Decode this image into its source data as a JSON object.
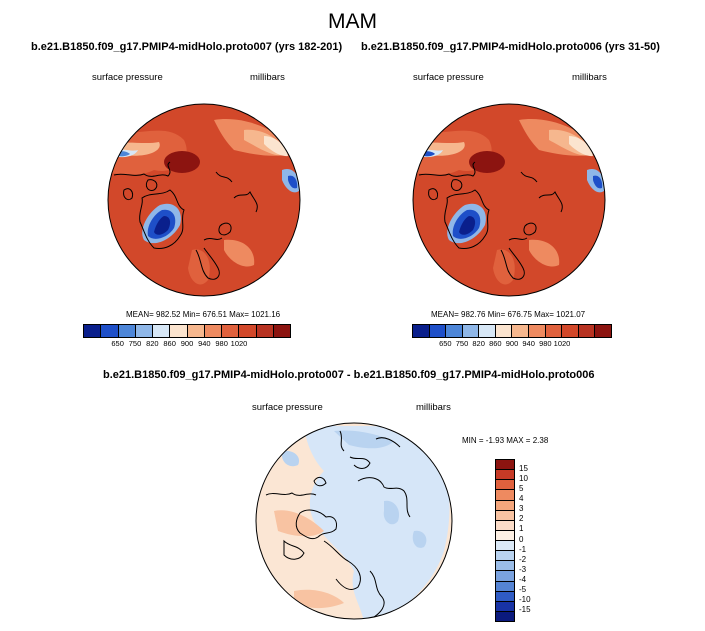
{
  "title": "MAM",
  "panels": [
    {
      "run_title": "b.e21.B1850.f09_g17.PMIP4-midHolo.proto007 (yrs 182-201)",
      "variable": "surface pressure",
      "units": "millibars",
      "stats": "MEAN= 982.52  Min= 676.51  Max= 1021.16"
    },
    {
      "run_title": "b.e21.B1850.f09_g17.PMIP4-midHolo.proto006 (yrs 31-50)",
      "variable": "surface pressure",
      "units": "millibars",
      "stats": "MEAN= 982.76  Min= 676.75  Max= 1021.07"
    }
  ],
  "abs_colorbar": {
    "labels": [
      "650",
      "750",
      "820",
      "860",
      "900",
      "940",
      "980",
      "1020"
    ],
    "colors": [
      "#0a1f8c",
      "#1e4fc8",
      "#4d86d8",
      "#8fb7e8",
      "#d7e7f6",
      "#fbe4cf",
      "#f6b78e",
      "#ee8a60",
      "#e0613d",
      "#d2482a",
      "#b83322",
      "#8c1410"
    ]
  },
  "diff_panel": {
    "title": "b.e21.B1850.f09_g17.PMIP4-midHolo.proto007 - b.e21.B1850.f09_g17.PMIP4-midHolo.proto006",
    "variable": "surface pressure",
    "units": "millibars",
    "minmax": "MIN =  -1.93 MAX =   2.38"
  },
  "diff_colorbar": {
    "labels": [
      "15",
      "10",
      "5",
      "4",
      "3",
      "2",
      "1",
      "0",
      "-1",
      "-2",
      "-3",
      "-4",
      "-5",
      "-10",
      "-15"
    ],
    "colors": [
      "#8c1410",
      "#c63a26",
      "#e0613d",
      "#ee8a60",
      "#f4a67c",
      "#f8c3a2",
      "#fbdcc8",
      "#fdf0e4",
      "#dbe9f7",
      "#b9d3f0",
      "#9bbde8",
      "#7aa2df",
      "#5584d4",
      "#2f5bc4",
      "#1833a5",
      "#0b1a7d"
    ]
  },
  "colors": {
    "land_high": "#d9532f",
    "ocean_low": "#2a52c8",
    "diff_positive": "#fbe6d4",
    "diff_negative": "#d6e6f8"
  }
}
